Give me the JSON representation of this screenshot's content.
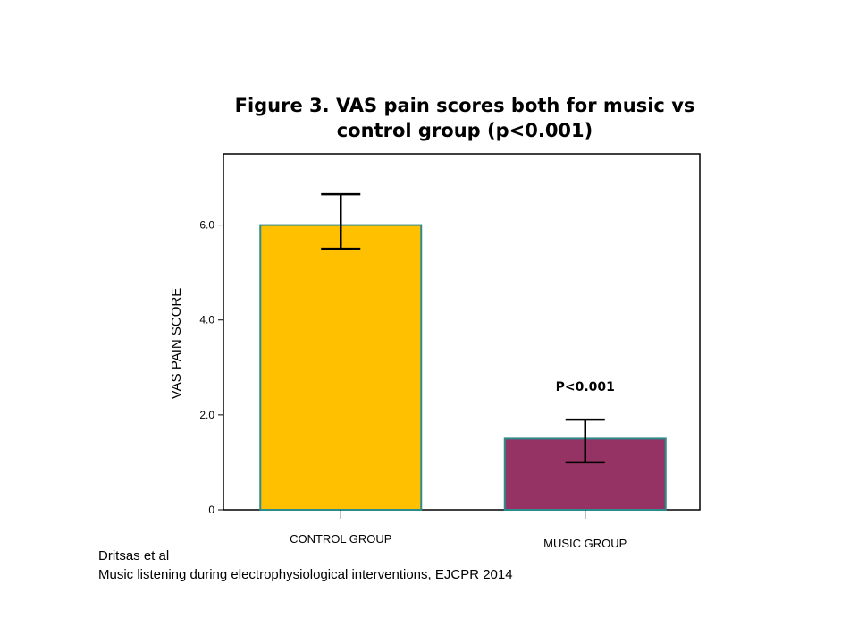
{
  "chart_data": {
    "type": "bar",
    "title_lines": [
      "Figure 3. VAS pain scores both for music vs",
      "control group (p<0.001)"
    ],
    "ylabel": "VAS PAIN SCORE",
    "xlabel": "",
    "categories": [
      "CONTROL GROUP",
      "MUSIC GROUP"
    ],
    "values": [
      6.0,
      1.5
    ],
    "error_bars": [
      {
        "low": 5.5,
        "high": 6.65
      },
      {
        "low": 1.0,
        "high": 1.9
      }
    ],
    "yticks": [
      {
        "value": 0,
        "label": "0"
      },
      {
        "value": 2,
        "label": "2.0"
      },
      {
        "value": 4,
        "label": "4.0"
      },
      {
        "value": 6,
        "label": "6.0"
      }
    ],
    "ylim": [
      0,
      7.5
    ],
    "grid": false,
    "annotations": [
      {
        "category": "MUSIC GROUP",
        "text": "P<0.001"
      }
    ],
    "colors": {
      "bars": [
        "#FFC000",
        "#953365"
      ],
      "bar_edge": "#2E8B8B",
      "error_bar": "#000000"
    }
  },
  "citation": {
    "line1": "Dritsas et al",
    "line2": "Music listening during electrophysiological interventions, EJCPR 2014"
  }
}
